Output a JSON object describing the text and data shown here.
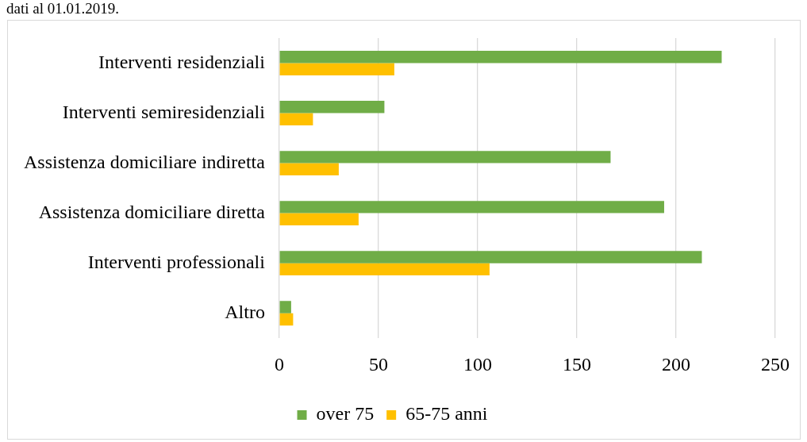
{
  "chart_data": {
    "type": "bar",
    "orientation": "horizontal",
    "title": "dati al 01.01.2019.",
    "categories": [
      "Interventi residenziali",
      "Interventi semiresidenziali",
      "Assistenza domiciliare indiretta",
      "Assistenza domiciliare diretta",
      "Interventi professionali",
      "Altro"
    ],
    "series": [
      {
        "name": "over 75",
        "color": "#70ad47",
        "values": [
          223,
          53,
          167,
          194,
          213,
          6
        ]
      },
      {
        "name": "65-75 anni",
        "color": "#ffc000",
        "values": [
          58,
          17,
          30,
          40,
          106,
          7
        ]
      }
    ],
    "xlim": [
      0,
      250
    ],
    "xticks": [
      0,
      50,
      100,
      150,
      200,
      250
    ],
    "grid": "x",
    "legend": "bottom"
  }
}
